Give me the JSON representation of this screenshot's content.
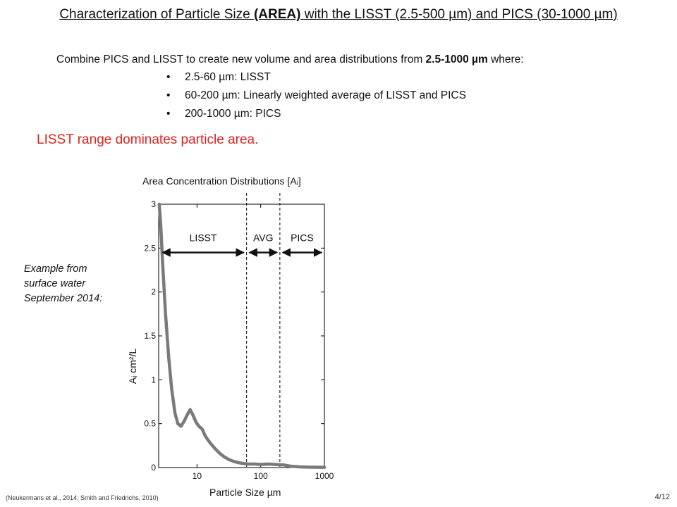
{
  "slide": {
    "title_part1": "Characterization of Particle Size ",
    "title_bold": "(AREA)",
    "title_part2": " with the LISST (2.5-500 µm) and PICS (30-1000 µm)",
    "intro_part1": "Combine PICS and LISST to create new volume and area distributions  from ",
    "intro_bold": "2.5-1000 µm",
    "intro_part2": " where:",
    "bullets": [
      "2.5-60 µm: LISST",
      "60-200 µm: Linearly weighted average of LISST and PICS",
      "200-1000 µm: PICS"
    ],
    "highlight": "LISST range dominates particle area.",
    "example_note": [
      "Example from",
      "surface water",
      "September 2014:"
    ],
    "citation": "(Neukermans et al., 2014; Smith and Friedrichs, 2010)",
    "page_number": "4/12"
  },
  "chart_data": {
    "type": "line",
    "title": "Area Concentration Distributions [Aᵢ]",
    "xlabel": "Particle Size µm",
    "ylabel": "Aᵢ cm²/L",
    "x_scale": "log",
    "xlim": [
      2.5,
      1000
    ],
    "ylim": [
      0,
      3
    ],
    "x_ticks": [
      10,
      100,
      1000
    ],
    "x_tick_labels": [
      "10",
      "100",
      "1000"
    ],
    "y_ticks": [
      0,
      0.5,
      1,
      1.5,
      2,
      2.5,
      3
    ],
    "y_tick_labels": [
      "0",
      "0.5",
      "1",
      "1.5",
      "2",
      "2.5",
      "3"
    ],
    "regions": [
      {
        "label": "LISST",
        "from": 2.6,
        "to": 60
      },
      {
        "label": "AVG",
        "from": 60,
        "to": 200
      },
      {
        "label": "PICS",
        "from": 200,
        "to": 1000
      }
    ],
    "boundaries": [
      60,
      200
    ],
    "series": [
      {
        "color": "#7a7a7a",
        "x": [
          2.55,
          2.7,
          2.9,
          3.2,
          3.6,
          4.0,
          4.5,
          5.0,
          5.6,
          6.3,
          7.0,
          7.8,
          8.6,
          9.6,
          10.7,
          12,
          13.5,
          15,
          17,
          19.5,
          23,
          27,
          32,
          38,
          45,
          55,
          65,
          80,
          100,
          130,
          170,
          230,
          300,
          400,
          550,
          700,
          900,
          1000
        ],
        "values": [
          3.0,
          2.75,
          2.3,
          1.75,
          1.25,
          0.9,
          0.62,
          0.5,
          0.47,
          0.53,
          0.6,
          0.66,
          0.6,
          0.52,
          0.47,
          0.44,
          0.36,
          0.31,
          0.26,
          0.21,
          0.16,
          0.12,
          0.09,
          0.07,
          0.055,
          0.045,
          0.04,
          0.04,
          0.035,
          0.04,
          0.035,
          0.03,
          0.015,
          0.008,
          0.005,
          0.004,
          0.003,
          0.003
        ]
      }
    ]
  }
}
